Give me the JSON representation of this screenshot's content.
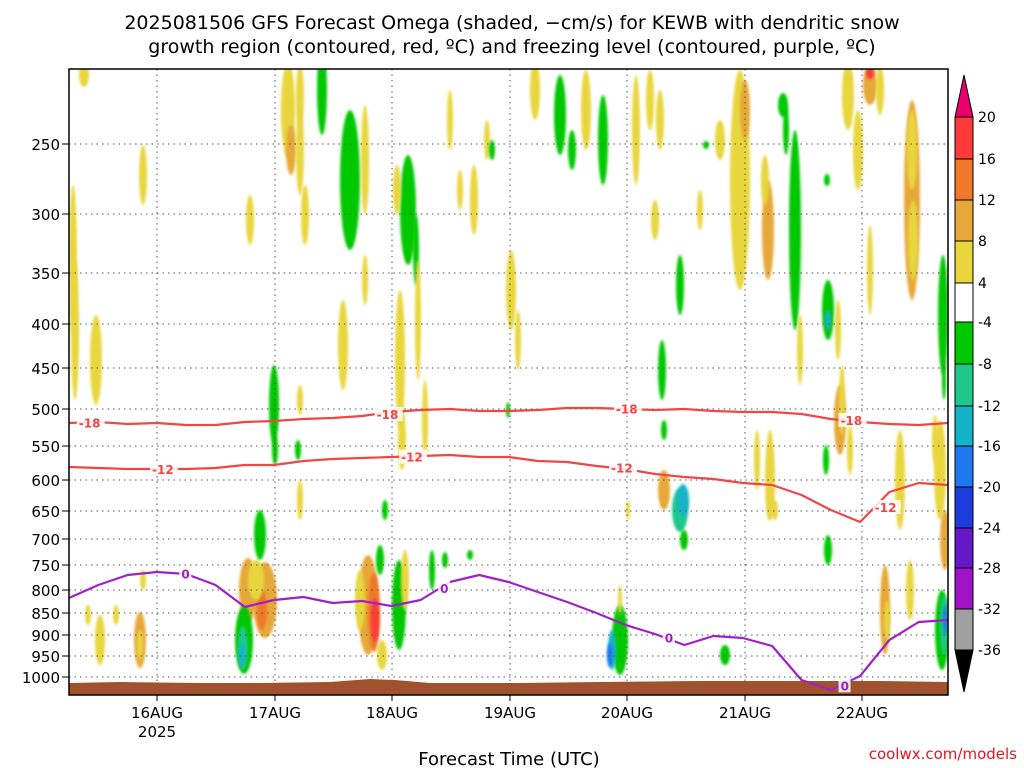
{
  "chart_data": {
    "type": "heatmap",
    "title_line1": "2025081506 GFS Forecast Omega (shaded, −cm/s) for KEWB with dendritic snow",
    "title_line2": "growth region (contoured, red, ºC) and freezing level (contoured, purple, ºC)",
    "xlabel": "Forecast Time (UTC)",
    "credit": "coolwx.com/models",
    "x_ticks": [
      "16AUG",
      "17AUG",
      "18AUG",
      "19AUG",
      "20AUG",
      "21AUG",
      "22AUG"
    ],
    "x_year": "2025",
    "xlim_hours": [
      0,
      180
    ],
    "y_ticks": [
      "250",
      "300",
      "350",
      "400",
      "450",
      "500",
      "550",
      "600",
      "650",
      "700",
      "750",
      "800",
      "850",
      "900",
      "950",
      "1000"
    ],
    "colorbar": {
      "labels": [
        "20",
        "16",
        "12",
        "8",
        "4",
        "-4",
        "-8",
        "-12",
        "-16",
        "-20",
        "-24",
        "-28",
        "-32",
        "-36"
      ],
      "colors": [
        "#e8006c",
        "#ff3a3a",
        "#f0782a",
        "#e6a838",
        "#e8d63c",
        "#ffffff",
        "#00c800",
        "#1ec88c",
        "#14b4c8",
        "#1e78f0",
        "#1e3cdc",
        "#6418c8",
        "#a014c8",
        "#a0a0a0",
        "#000000"
      ]
    },
    "contours": [
      {
        "color": "#f04646",
        "label": "-18",
        "label_at": [
          [
            2,
            -18
          ],
          [
            63,
            -18
          ],
          [
            112,
            -18
          ],
          [
            158,
            -18
          ]
        ],
        "points": [
          [
            0,
            423
          ],
          [
            6,
            422
          ],
          [
            12,
            424
          ],
          [
            18,
            423
          ],
          [
            24,
            425
          ],
          [
            30,
            425
          ],
          [
            36,
            422
          ],
          [
            42,
            421
          ],
          [
            48,
            419
          ],
          [
            54,
            418
          ],
          [
            60,
            416
          ],
          [
            66,
            412
          ],
          [
            72,
            410
          ],
          [
            78,
            409
          ],
          [
            84,
            411
          ],
          [
            90,
            411
          ],
          [
            96,
            410
          ],
          [
            102,
            408
          ],
          [
            108,
            408
          ],
          [
            114,
            409
          ],
          [
            120,
            410
          ],
          [
            126,
            409
          ],
          [
            132,
            411
          ],
          [
            138,
            412
          ],
          [
            144,
            412
          ],
          [
            150,
            414
          ],
          [
            156,
            419
          ],
          [
            162,
            422
          ],
          [
            168,
            424
          ],
          [
            174,
            425
          ],
          [
            180,
            423
          ]
        ]
      },
      {
        "color": "#f04646",
        "label": "-12",
        "label_at": [
          [
            17,
            -12
          ],
          [
            68,
            -12
          ],
          [
            111,
            -12
          ],
          [
            165,
            -12
          ]
        ],
        "points": [
          [
            0,
            467
          ],
          [
            6,
            468
          ],
          [
            12,
            469
          ],
          [
            18,
            469
          ],
          [
            24,
            469
          ],
          [
            30,
            468
          ],
          [
            36,
            465
          ],
          [
            42,
            465
          ],
          [
            48,
            461
          ],
          [
            54,
            459
          ],
          [
            60,
            458
          ],
          [
            66,
            457
          ],
          [
            72,
            456
          ],
          [
            78,
            455
          ],
          [
            84,
            457
          ],
          [
            90,
            457
          ],
          [
            96,
            461
          ],
          [
            102,
            462
          ],
          [
            108,
            466
          ],
          [
            114,
            469
          ],
          [
            120,
            474
          ],
          [
            126,
            477
          ],
          [
            132,
            479
          ],
          [
            138,
            483
          ],
          [
            144,
            485
          ],
          [
            150,
            495
          ],
          [
            156,
            510
          ],
          [
            162,
            522
          ],
          [
            168,
            492
          ],
          [
            174,
            483
          ],
          [
            180,
            485
          ]
        ]
      },
      {
        "color": "#a020c8",
        "label": "0",
        "label_at": [
          [
            23,
            0
          ],
          [
            76,
            0
          ],
          [
            122,
            0
          ],
          [
            158,
            0
          ]
        ],
        "points": [
          [
            0,
            598
          ],
          [
            6,
            585
          ],
          [
            12,
            575
          ],
          [
            18,
            572
          ],
          [
            24,
            574
          ],
          [
            30,
            585
          ],
          [
            36,
            607
          ],
          [
            42,
            600
          ],
          [
            48,
            597
          ],
          [
            54,
            603
          ],
          [
            60,
            601
          ],
          [
            66,
            606
          ],
          [
            72,
            600
          ],
          [
            78,
            582
          ],
          [
            84,
            575
          ],
          [
            90,
            582
          ],
          [
            96,
            592
          ],
          [
            102,
            602
          ],
          [
            108,
            613
          ],
          [
            114,
            625
          ],
          [
            120,
            634
          ],
          [
            126,
            645
          ],
          [
            132,
            636
          ],
          [
            138,
            638
          ],
          [
            144,
            646
          ],
          [
            150,
            680
          ],
          [
            156,
            690
          ],
          [
            162,
            676
          ],
          [
            168,
            640
          ],
          [
            174,
            622
          ],
          [
            180,
            620
          ]
        ]
      }
    ]
  }
}
